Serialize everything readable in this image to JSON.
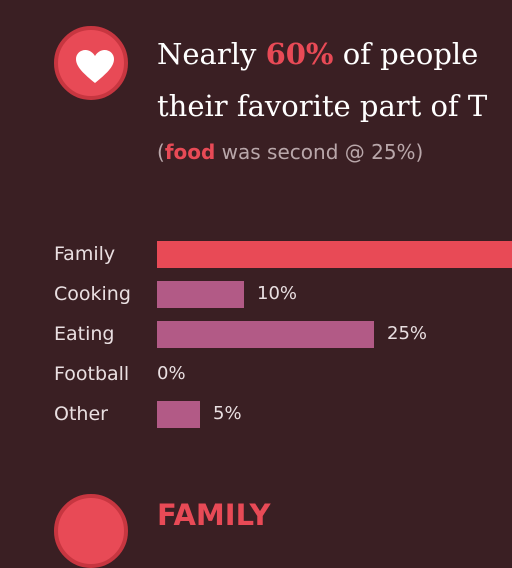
{
  "headline": {
    "part1": "Nearly ",
    "highlight": "60%",
    "part2": " of people",
    "line2": "their favorite part of T"
  },
  "subline": {
    "open": "(",
    "highlight": "food",
    "rest": " was second @ 25%)"
  },
  "colors": {
    "background": "#3a1f23",
    "accent": "#e84a56",
    "bar_secondary": "#b25a86"
  },
  "icons": {
    "top": "heart-icon"
  },
  "next_section": {
    "title_fragment": "FAMILY"
  },
  "chart_data": {
    "type": "bar",
    "orientation": "horizontal",
    "categories": [
      "Family",
      "Cooking",
      "Eating",
      "Football",
      "Other"
    ],
    "values": [
      60,
      10,
      25,
      0,
      5
    ],
    "value_labels": [
      "",
      "10%",
      "25%",
      "0%",
      "5%"
    ],
    "unit": "%",
    "xlim": [
      0,
      60
    ]
  }
}
